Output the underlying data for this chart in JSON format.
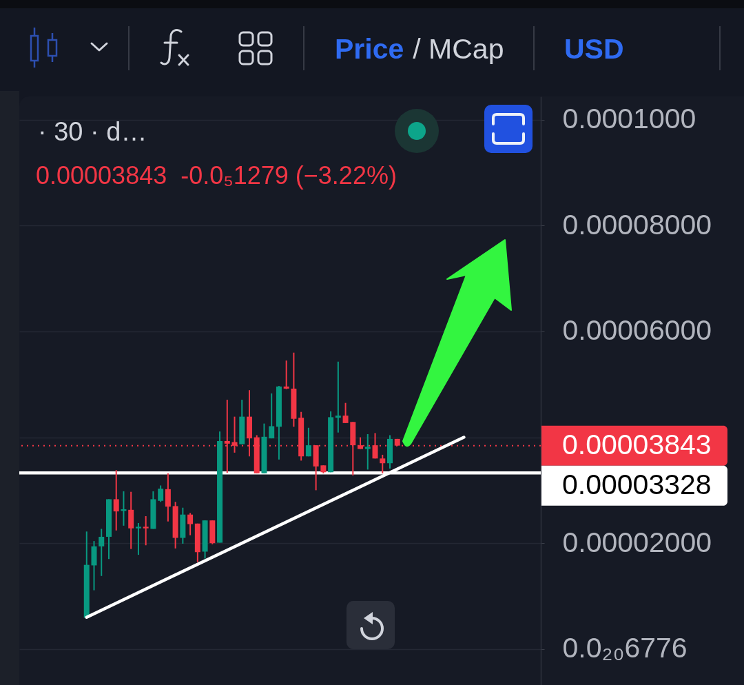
{
  "chart_data": {
    "type": "candlestick",
    "title": "· 30 · d…",
    "subtitle": "0.00003843  -0.0₅1279 (−3.22%)",
    "annotations": [
      "Price",
      "/ MCap",
      "USD"
    ],
    "categories": [
      null,
      null,
      null,
      null,
      null,
      null,
      null,
      null,
      null,
      null,
      null,
      null,
      null,
      null,
      null,
      null,
      null,
      null,
      null,
      null,
      null,
      null,
      null,
      null,
      null,
      null,
      null,
      null,
      null,
      null,
      null,
      null,
      null,
      null,
      null,
      null,
      null,
      null,
      null,
      null,
      null,
      null,
      null,
      null,
      null,
      null,
      null,
      null,
      null,
      null,
      null,
      null
    ],
    "ohlc": [
      [
        5.9e-06,
        2.22e-05,
        5.9e-06,
        1.59e-05
      ],
      [
        1.58e-05,
        2.04e-05,
        1.11e-05,
        1.94e-05
      ],
      [
        1.94e-05,
        2.27e-05,
        1.38e-05,
        2.12e-05
      ],
      [
        2.12e-05,
        2.83e-05,
        1.7e-05,
        2.83e-05
      ],
      [
        2.83e-05,
        3.38e-05,
        2.24e-05,
        2.6e-05
      ],
      [
        2.61e-05,
        2.98e-05,
        2.33e-05,
        2.64e-05
      ],
      [
        2.63e-05,
        2.97e-05,
        1.89e-05,
        2.28e-05
      ],
      [
        2.28e-05,
        2.38e-05,
        1.78e-05,
        2.31e-05
      ],
      [
        2.31e-05,
        2.51e-05,
        1.96e-05,
        2.28e-05
      ],
      [
        2.27e-05,
        2.98e-05,
        2.27e-05,
        2.83e-05
      ],
      [
        2.8e-05,
        3.09e-05,
        2.78e-05,
        3.03e-05
      ],
      [
        3.02e-05,
        3.32e-05,
        2.41e-05,
        2.69e-05
      ],
      [
        2.7e-05,
        2.78e-05,
        1.9e-05,
        2.1e-05
      ],
      [
        2.1e-05,
        2.67e-05,
        1.99e-05,
        2.54e-05
      ],
      [
        2.54e-05,
        2.57e-05,
        2.15e-05,
        2.36e-05
      ],
      [
        2.37e-05,
        2.37e-05,
        1.64e-05,
        1.83e-05
      ],
      [
        1.84e-05,
        2.43e-05,
        1.71e-05,
        2.43e-05
      ],
      [
        2.43e-05,
        2.43e-05,
        1.98e-05,
        2e-05
      ],
      [
        2.01e-05,
        4.11e-05,
        2.01e-05,
        3.93e-05
      ],
      [
        3.93e-05,
        4.71e-05,
        3.33e-05,
        3.88e-05
      ],
      [
        3.91e-05,
        4.39e-05,
        3.71e-05,
        3.84e-05
      ],
      [
        3.87e-05,
        4.71e-05,
        3.87e-05,
        4.39e-05
      ],
      [
        4.39e-05,
        4.89e-05,
        3.64e-05,
        3.98e-05
      ],
      [
        4e-05,
        4.04e-05,
        3.32e-05,
        3.32e-05
      ],
      [
        3.32e-05,
        4.26e-05,
        3.32e-05,
        4.01e-05
      ],
      [
        3.98e-05,
        4.83e-05,
        3.98e-05,
        4.21e-05
      ],
      [
        4.2e-05,
        4.97e-05,
        3.58e-05,
        4.96e-05
      ],
      [
        4.96e-05,
        5.45e-05,
        4.91e-05,
        4.92e-05
      ],
      [
        4.92e-05,
        5.6e-05,
        4.2e-05,
        4.35e-05
      ],
      [
        4.37e-05,
        4.48e-05,
        3.56e-05,
        3.64e-05
      ],
      [
        3.64e-05,
        4.18e-05,
        3.64e-05,
        3.85e-05
      ],
      [
        3.85e-05,
        3.85e-05,
        3e-05,
        3.45e-05
      ],
      [
        3.47e-05,
        3.47e-05,
        3.32e-05,
        3.34e-05
      ],
      [
        3.34e-05,
        4.49e-05,
        3.34e-05,
        4.38e-05
      ],
      [
        4.37e-05,
        5.43e-05,
        4.09e-05,
        4.41e-05
      ],
      [
        4.41e-05,
        4.65e-05,
        4.27e-05,
        4.27e-05
      ],
      [
        4.29e-05,
        4.29e-05,
        3.28e-05,
        3.85e-05
      ],
      [
        3.85e-05,
        4e-05,
        3.78e-05,
        3.78e-05
      ],
      [
        3.78e-05,
        4.06e-05,
        3.39e-05,
        3.82e-05
      ],
      [
        3.85e-05,
        4.08e-05,
        3.6e-05,
        3.6e-05
      ],
      [
        3.6e-05,
        3.67e-05,
        3.32e-05,
        3.51e-05
      ],
      [
        3.51e-05,
        4.04e-05,
        3.41e-05,
        3.97e-05
      ],
      [
        3.97e-05,
        3.97e-05,
        3.843e-05,
        3.843e-05
      ],
      null,
      null,
      null,
      null,
      null,
      null,
      null,
      null,
      null
    ],
    "colors": [
      "#089981",
      "#089981",
      "#089981",
      "#089981",
      "#f23645",
      "#089981",
      "#f23645",
      "#089981",
      "#f23645",
      "#089981",
      "#089981",
      "#f23645",
      "#f23645",
      "#089981",
      "#f23645",
      "#f23645",
      "#089981",
      "#f23645",
      "#089981",
      "#f23645",
      "#f23645",
      "#089981",
      "#f23645",
      "#f23645",
      "#089981",
      "#089981",
      "#089981",
      "#f23645",
      "#f23645",
      "#f23645",
      "#089981",
      "#f23645",
      "#f23645",
      "#089981",
      "#089981",
      "#f23645",
      "#f23645",
      "#f23645",
      "#089981",
      "#f23645",
      "#f23645",
      "#089981",
      "#f23645",
      null,
      null,
      null,
      null,
      null,
      null,
      null,
      null,
      null
    ],
    "series": [
      {
        "type": "line",
        "color": "#ffffff",
        "values": [
          6e-06,
          null,
          null,
          null,
          null,
          null,
          null,
          null,
          null,
          null,
          null,
          null,
          null,
          null,
          null,
          null,
          null,
          null,
          null,
          null,
          null,
          null,
          null,
          null,
          null,
          null,
          null,
          null,
          null,
          null,
          null,
          null,
          null,
          null,
          null,
          null,
          null,
          null,
          null,
          null,
          null,
          null,
          null,
          null,
          null,
          null,
          null,
          null,
          null,
          null,
          null,
          4e-05
        ]
      }
    ],
    "ylim": [
      -6.8e-06,
      0.0001044
    ],
    "yticks": [
      {
        "value": 0,
        "label": "0.0₂₀6776"
      },
      {
        "value": 2e-05,
        "label": "0.00002000"
      },
      {
        "value": 4e-05,
        "label": null
      },
      {
        "value": 6e-05,
        "label": "0.00006000"
      },
      {
        "value": 8e-05,
        "label": "0.00008000"
      },
      {
        "value": 0.0001,
        "label": "0.0001000"
      }
    ],
    "ref_lines": [
      {
        "axis": "y",
        "value": 3.843e-05,
        "label": "0.00003843",
        "color": "#f23645",
        "line_style": "dotted"
      },
      {
        "axis": "y",
        "value": 3.328e-05,
        "label": "0.00003328",
        "color": "#ffffff",
        "line_style": "solid"
      }
    ],
    "grid": "y",
    "tick_labels": "y"
  }
}
